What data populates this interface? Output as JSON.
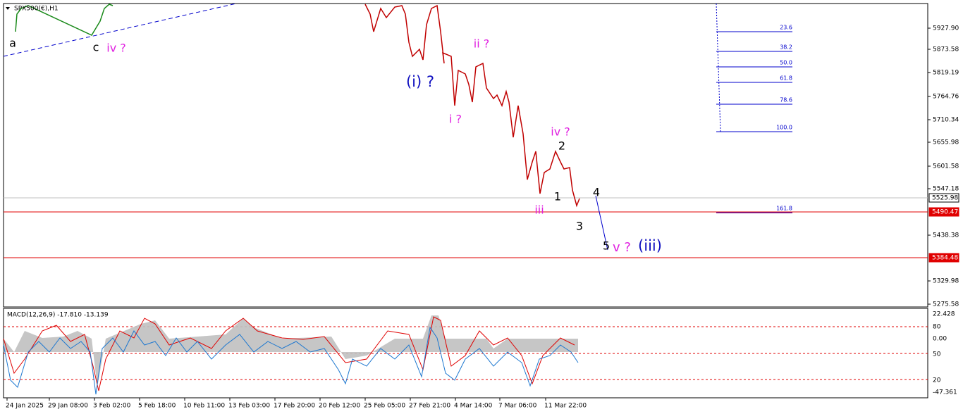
{
  "symbol": "SPX500(€),H1",
  "price_axis": [
    "5927.90",
    "5873.58",
    "5819.19",
    "5764.76",
    "5710.34",
    "5655.98",
    "5601.58",
    "5547.18",
    "5438.38",
    "5329.98",
    "5275.58"
  ],
  "price_boxes": [
    "5525.98",
    "5490.47",
    "5384.48"
  ],
  "indicator": {
    "title": "MACD(12,26,9) -17.810 -13.139",
    "axis": [
      "22.428",
      "80",
      "0.00",
      "50",
      "20",
      "-47.361"
    ]
  },
  "time_axis": [
    "24 Jan 2025",
    "29 Jan 08:00",
    "3 Feb 02:00",
    "5 Feb 18:00",
    "10 Feb 11:00",
    "13 Feb 03:00",
    "17 Feb 20:00",
    "20 Feb 12:00",
    "25 Feb 05:00",
    "27 Feb 21:00",
    "4 Mar 14:00",
    "7 Mar 06:00",
    "11 Mar 22:00"
  ],
  "fib_levels": [
    "23.6",
    "38.2",
    "50.0",
    "61.8",
    "78.6",
    "100.0",
    "161.8"
  ],
  "wave_labels": [
    "a",
    "c",
    "iv ?",
    "(i) ?",
    "ii ?",
    "i ?",
    "iv ?",
    "2",
    "1",
    "iii",
    "4",
    "3",
    "5",
    "v ?",
    "(iii)"
  ]
}
